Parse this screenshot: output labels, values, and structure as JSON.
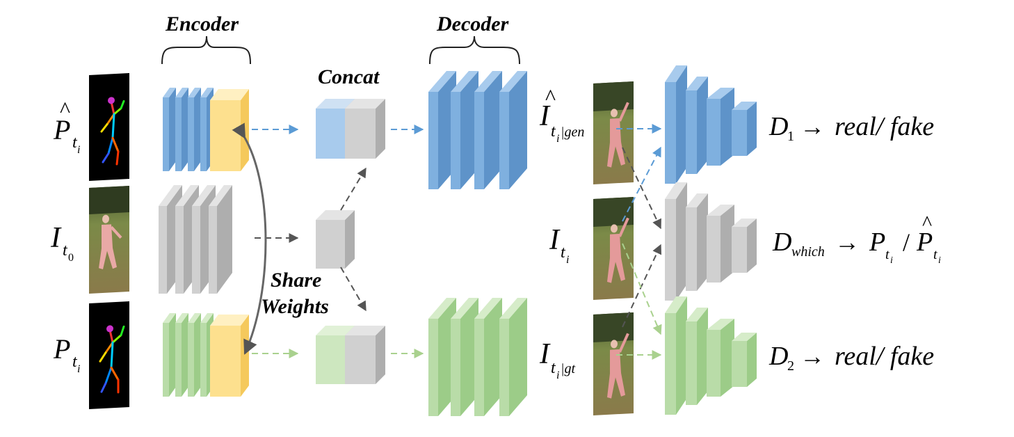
{
  "labels": {
    "encoder": "Encoder",
    "decoder": "Decoder",
    "concat": "Concat",
    "share_line1": "Share",
    "share_line2": "Weights"
  },
  "inputs": {
    "pose_hat": {
      "base": "P",
      "accent": "^",
      "sub": "t",
      "subsub": "i"
    },
    "img_t0": {
      "base": "I",
      "sub": "t",
      "subsub": "0"
    },
    "pose": {
      "base": "P",
      "sub": "t",
      "subsub": "i"
    }
  },
  "outputs": {
    "gen": {
      "base": "I",
      "accent": "^",
      "sub": "t",
      "subsub": "i",
      "suffix": "|gen"
    },
    "real": {
      "base": "I",
      "sub": "t",
      "subsub": "i"
    },
    "gt": {
      "base": "I",
      "sub": "t",
      "subsub": "i",
      "suffix": "|gt"
    }
  },
  "discriminators": {
    "d1": {
      "name": "D",
      "sub": "1",
      "arrow": "→",
      "result": "real/ fake"
    },
    "dwhich": {
      "name": "D",
      "sub": "which",
      "arrow": "→",
      "p1": "P",
      "slash": "/",
      "p2": "P",
      "p2_accent": "^",
      "psub": "t",
      "psubsub": "i"
    },
    "d2": {
      "name": "D",
      "sub": "2",
      "arrow": "→",
      "result": "real/ fake"
    }
  },
  "colors": {
    "blue": "#7fb0df",
    "blue_side": "#5e93c9",
    "blue_top": "#a8cbed",
    "green": "#b9dca8",
    "green_side": "#9ccc88",
    "green_top": "#d6ecc9",
    "gray": "#d0d0d0",
    "gray_side": "#aeaeae",
    "gray_top": "#e4e4e4",
    "yellow": "#fde08e",
    "yellow_side": "#f5c95c",
    "yellow_top": "#fff0c2",
    "arrow_blue": "#5b9bd5",
    "arrow_green": "#a9d18e",
    "arrow_gray": "#555555"
  }
}
